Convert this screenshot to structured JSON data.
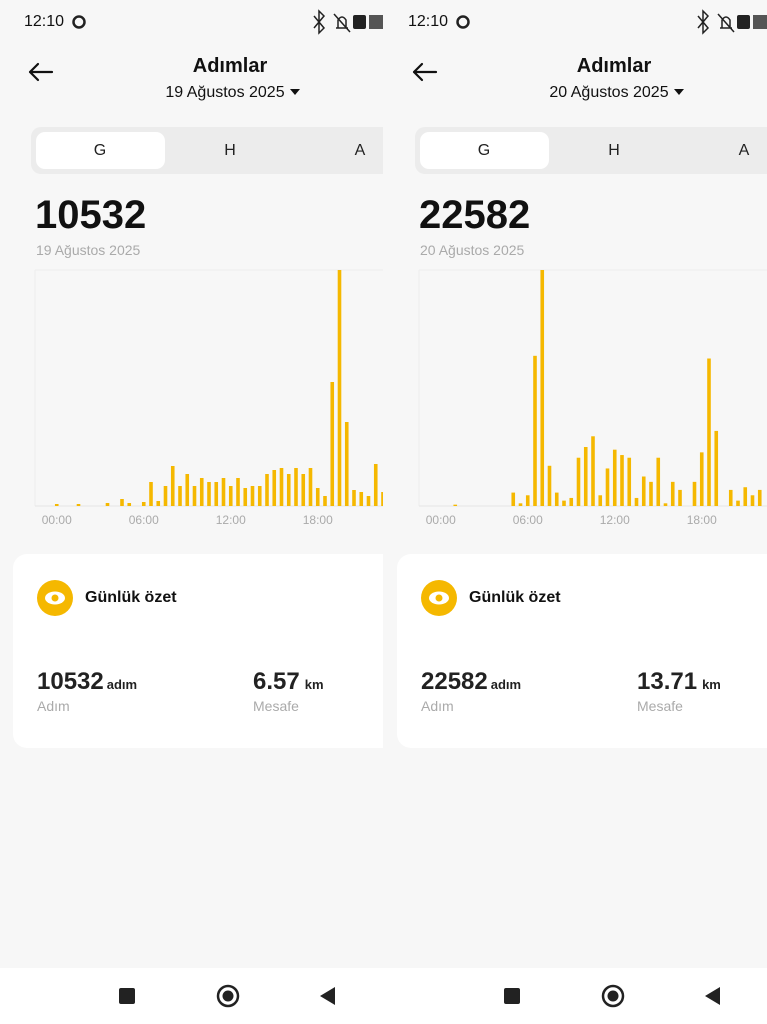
{
  "screens": [
    {
      "status_time": "12:10",
      "title": "Adımlar",
      "date": "19 Ağustos 2025",
      "tabs": [
        "G",
        "H",
        "A"
      ],
      "total": 10532,
      "total_date": "19 Ağustos 2025",
      "summary": {
        "title": "Günlük özet",
        "steps": 10532,
        "steps_unit": "adım",
        "steps_label": "Adım",
        "distance": 6.57,
        "distance_unit": "km",
        "distance_label": "Mesafe"
      }
    },
    {
      "status_time": "12:10",
      "title": "Adımlar",
      "date": "20 Ağustos 2025",
      "tabs": [
        "G",
        "H",
        "A"
      ],
      "total": 22582,
      "total_date": "20 Ağustos 2025",
      "summary": {
        "title": "Günlük özet",
        "steps": 22582,
        "steps_unit": "adım",
        "steps_label": "Adım",
        "distance": 13.71,
        "distance_unit": "km",
        "distance_label": "Mesafe"
      }
    }
  ],
  "chart_data": [
    {
      "type": "bar",
      "color": "#f5b800",
      "xlim": [
        -3,
        45
      ],
      "ylim": [
        0,
        2124
      ],
      "xticks": [
        {
          "value": 0,
          "label": "00:00"
        },
        {
          "value": 12,
          "label": "06:00"
        },
        {
          "value": 24,
          "label": "12:00"
        },
        {
          "value": 36,
          "label": "18:00"
        },
        {
          "value": 48,
          "label": "00:00"
        }
      ],
      "values": [
        18,
        0,
        0,
        18,
        0,
        0,
        0,
        27,
        0,
        63,
        27,
        0,
        36,
        216,
        45,
        180,
        360,
        180,
        288,
        180,
        252,
        216,
        216,
        252,
        180,
        252,
        162,
        180,
        180,
        288,
        324,
        342,
        288,
        342,
        288,
        342,
        162,
        90,
        1116,
        2124,
        756,
        144,
        126,
        90,
        378,
        126
      ]
    },
    {
      "type": "bar",
      "color": "#f5b800",
      "xlim": [
        -3,
        45
      ],
      "ylim": [
        0,
        3872
      ],
      "xticks": [
        {
          "value": 0,
          "label": "00:00"
        },
        {
          "value": 12,
          "label": "06:00"
        },
        {
          "value": 24,
          "label": "12:00"
        },
        {
          "value": 36,
          "label": "18:00"
        },
        {
          "value": 48,
          "label": "00:00"
        }
      ],
      "values": [
        0,
        0,
        22,
        0,
        0,
        0,
        0,
        0,
        0,
        0,
        220,
        44,
        176,
        2464,
        3872,
        660,
        220,
        88,
        132,
        792,
        968,
        1144,
        176,
        616,
        924,
        836,
        792,
        132,
        484,
        396,
        792,
        44,
        396,
        264,
        0,
        396,
        880,
        2420,
        1232,
        0,
        264,
        88,
        308,
        176,
        264
      ]
    }
  ]
}
